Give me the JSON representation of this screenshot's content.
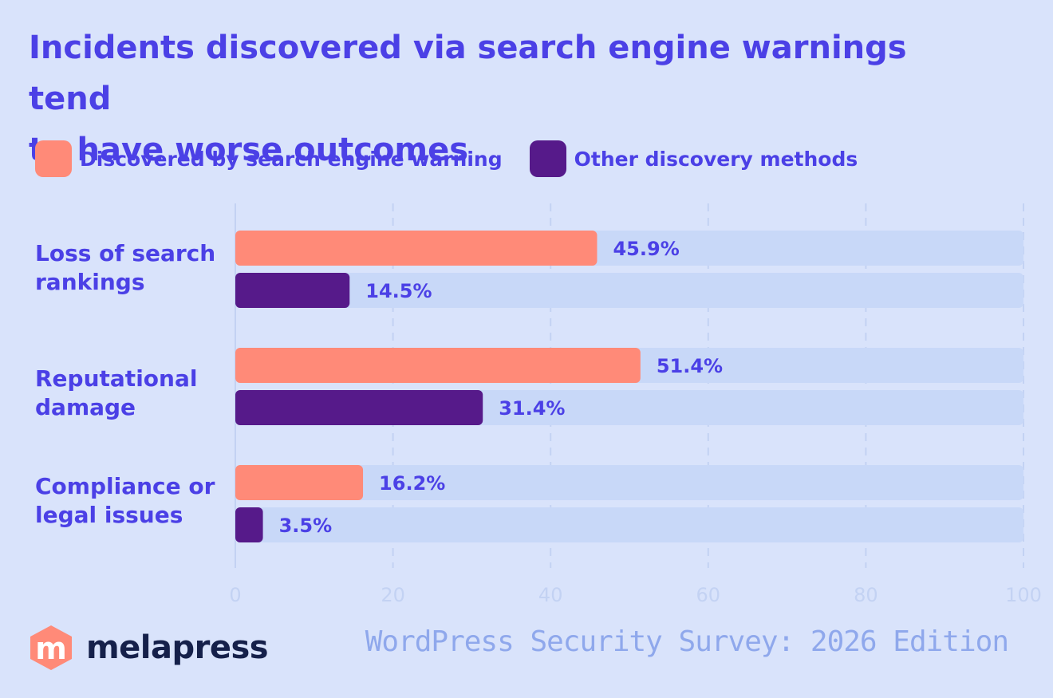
{
  "chart_data": {
    "type": "bar",
    "orientation": "horizontal",
    "title": "Incidents discovered via search engine warnings tend to have worse outcomes",
    "title_lines": [
      "Incidents discovered via search engine warnings tend",
      "to have worse outcomes"
    ],
    "categories": [
      "Loss of search rankings",
      "Reputational damage",
      "Compliance or legal issues"
    ],
    "category_lines": [
      [
        "Loss of search",
        "rankings"
      ],
      [
        "Reputational",
        "damage"
      ],
      [
        "Compliance or",
        "legal issues"
      ]
    ],
    "series": [
      {
        "name": "Discovered by search engine warning",
        "values": [
          45.9,
          51.4,
          16.2
        ],
        "labels": [
          "45.9%",
          "51.4%",
          "16.2%"
        ],
        "color": "#ff8a78"
      },
      {
        "name": "Other discovery methods",
        "values": [
          14.5,
          31.4,
          3.5
        ],
        "labels": [
          "14.5%",
          "31.4%",
          "3.5%"
        ],
        "color": "#561a8a"
      }
    ],
    "xlim": [
      0,
      100
    ],
    "xticks": [
      "0",
      "20",
      "40",
      "60",
      "80",
      "100"
    ],
    "xtick_values": [
      0,
      20,
      40,
      60,
      80,
      100
    ],
    "grid": true,
    "legend_position": "top-left",
    "track_color": "#c8d8f8"
  },
  "footer": {
    "logo_text": "melapress",
    "logo_mark": "m",
    "source": "WordPress Security Survey: 2026 Edition"
  },
  "colors": {
    "background": "#d9e3fb",
    "accent": "#4b40e6",
    "logo_mark": "#ff8a78"
  }
}
